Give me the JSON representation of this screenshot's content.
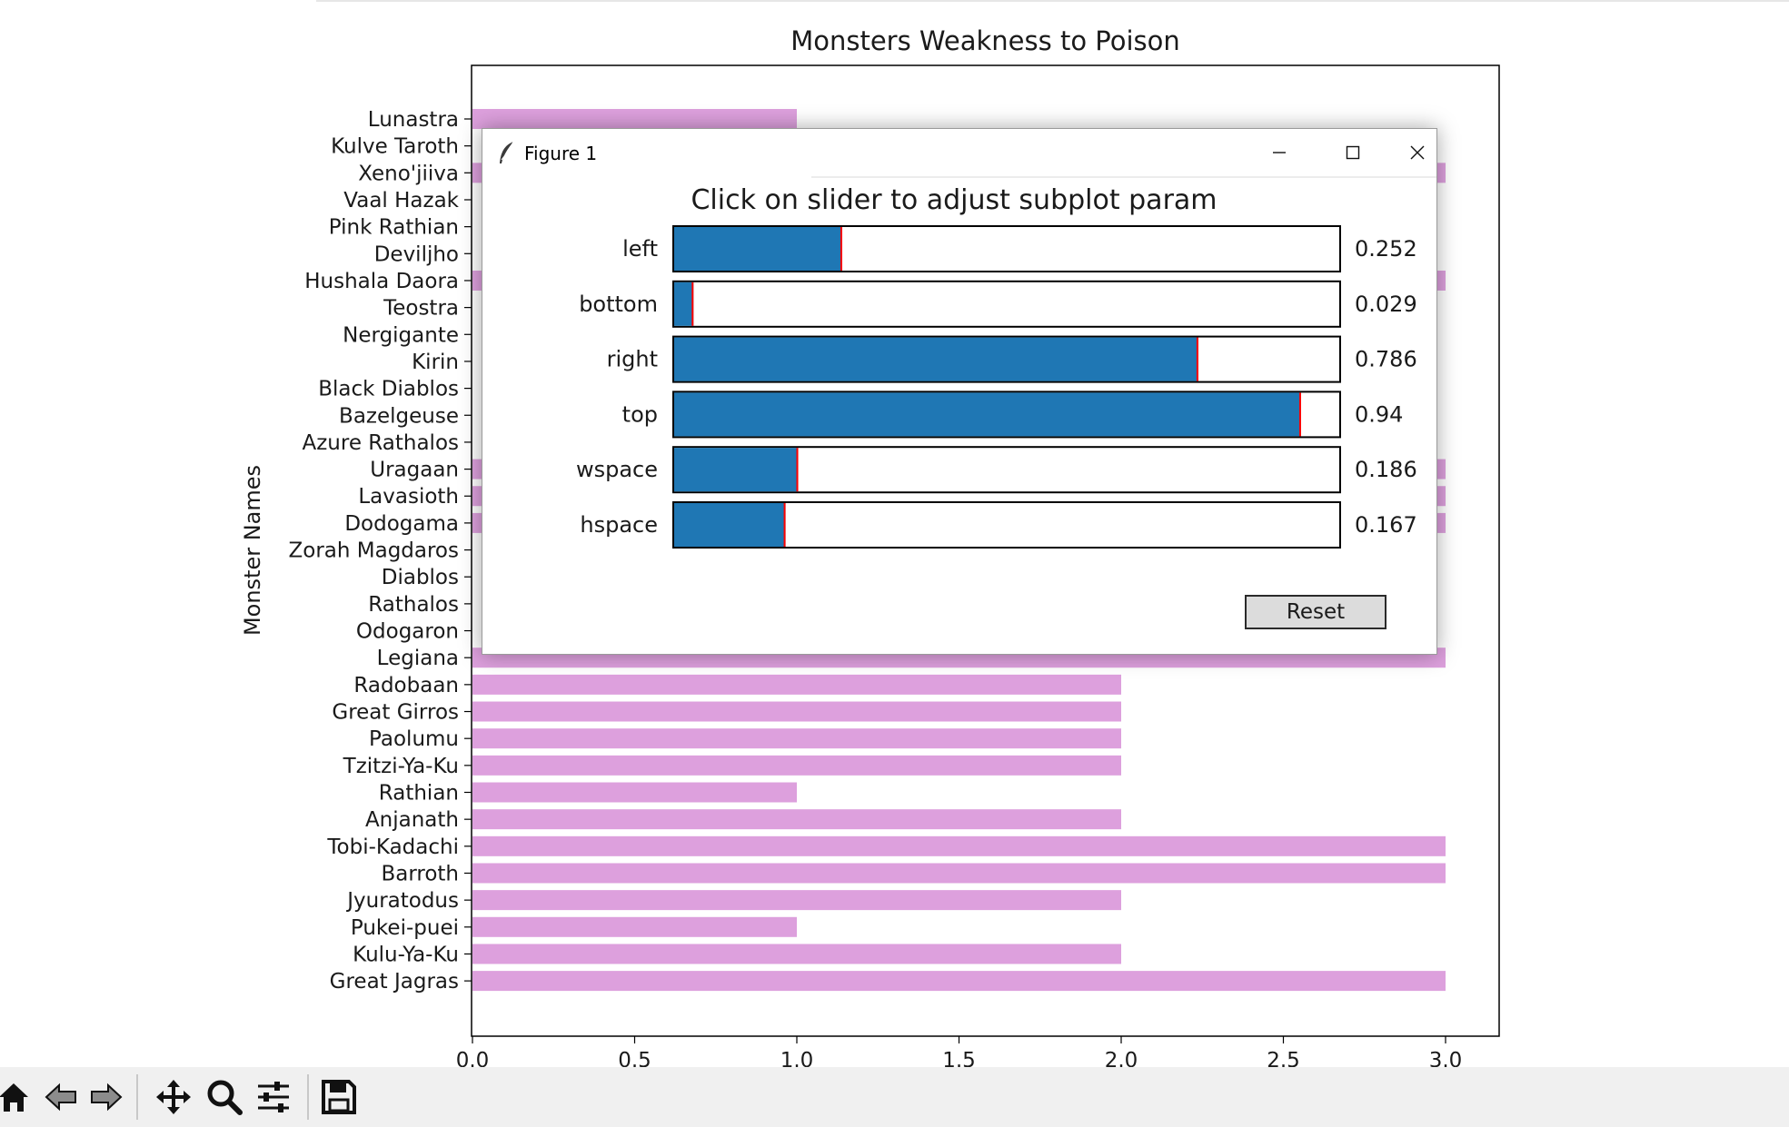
{
  "chart_data": {
    "type": "bar",
    "orientation": "horizontal",
    "title": "Monsters Weakness to Poison",
    "xlabel": "",
    "ylabel": "Monster Names",
    "xlim": [
      0.0,
      3.15
    ],
    "xticks": [
      0.0,
      0.5,
      1.0,
      1.5,
      2.0,
      2.5,
      3.0
    ],
    "xtick_labels": [
      "0.0",
      "0.5",
      "1.0",
      "1.5",
      "2.0",
      "2.5",
      "3.0"
    ],
    "bar_color": "#dda0dd",
    "categories": [
      "Lunastra",
      "Kulve Taroth",
      "Xeno'jiiva",
      "Vaal Hazak",
      "Pink Rathian",
      "Deviljho",
      "Hushala Daora",
      "Teostra",
      "Nergigante",
      "Kirin",
      "Black Diablos",
      "Bazelgeuse",
      "Azure Rathalos",
      "Uragaan",
      "Lavasioth",
      "Dodogama",
      "Zorah Magdaros",
      "Diablos",
      "Rathalos",
      "Odogaron",
      "Legiana",
      "Radobaan",
      "Great Girros",
      "Paolumu",
      "Tzitzi-Ya-Ku",
      "Rathian",
      "Anjanath",
      "Tobi-Kadachi",
      "Barroth",
      "Jyuratodus",
      "Pukei-puei",
      "Kulu-Ya-Ku",
      "Great Jagras"
    ],
    "values": [
      1,
      null,
      3,
      null,
      null,
      null,
      3,
      null,
      null,
      null,
      null,
      null,
      null,
      3,
      3,
      3,
      null,
      null,
      null,
      null,
      3,
      2,
      2,
      2,
      2,
      1,
      2,
      3,
      3,
      2,
      1,
      2,
      3
    ],
    "grid": false
  },
  "dialog": {
    "window_title": "Figure 1",
    "heading": "Click on slider to adjust subplot param",
    "reset_label": "Reset",
    "slider_fill_color": "#1f77b4",
    "slider_marker_color": "#ff0000",
    "sliders": [
      {
        "label": "left",
        "value": 0.252,
        "display": "0.252",
        "fill_fraction": 0.252
      },
      {
        "label": "bottom",
        "value": 0.029,
        "display": "0.029",
        "fill_fraction": 0.029
      },
      {
        "label": "right",
        "value": 0.786,
        "display": "0.786",
        "fill_fraction": 0.786
      },
      {
        "label": "top",
        "value": 0.94,
        "display": "0.94",
        "fill_fraction": 0.94
      },
      {
        "label": "wspace",
        "value": 0.186,
        "display": "0.186",
        "fill_fraction": 0.186
      },
      {
        "label": "hspace",
        "value": 0.167,
        "display": "0.167",
        "fill_fraction": 0.167
      }
    ]
  },
  "toolbar": {
    "buttons": [
      "home-icon",
      "back-icon",
      "forward-icon",
      "pan-icon",
      "zoom-icon",
      "configure-subplots-icon",
      "save-icon"
    ]
  }
}
